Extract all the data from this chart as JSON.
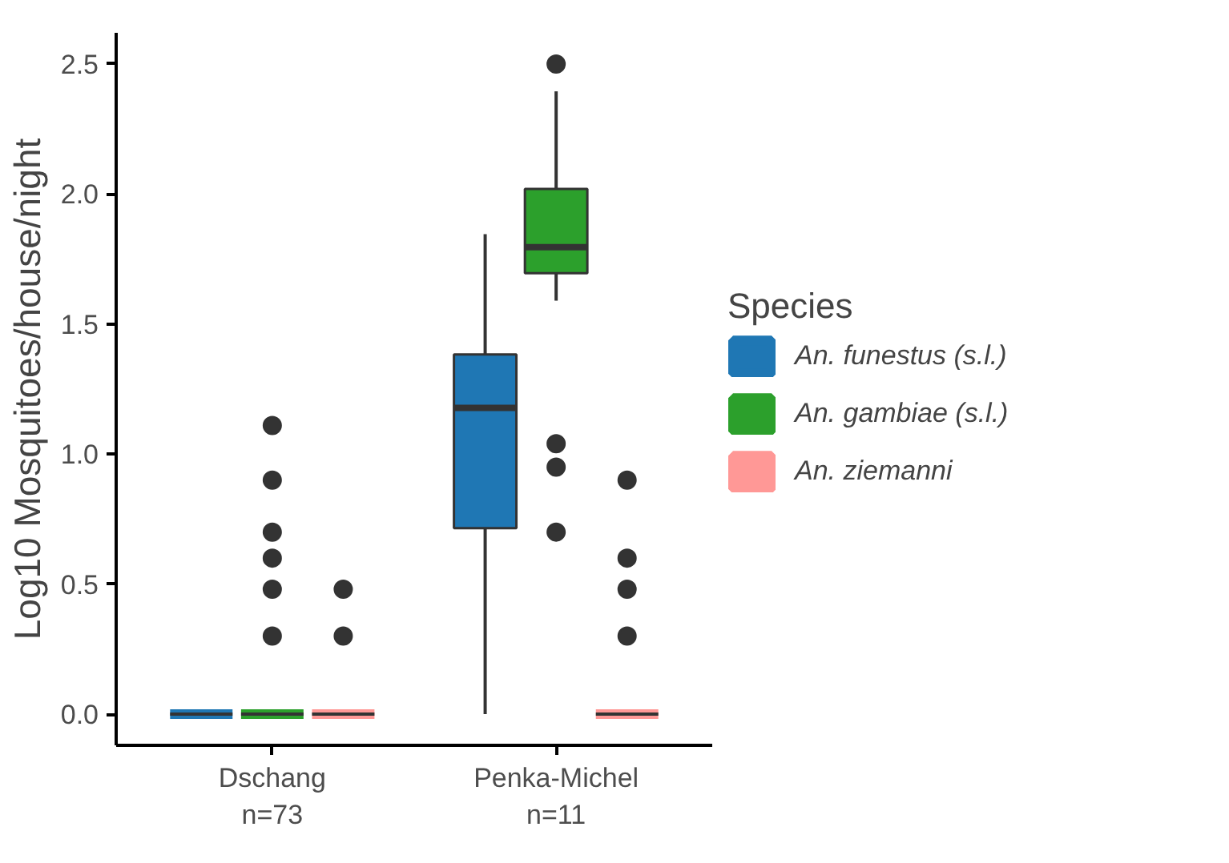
{
  "chart_data": {
    "type": "box",
    "ylabel": "Log10 Mosquitoes/house/night",
    "legend_title": "Species",
    "legend": "right",
    "grid": false,
    "categories": [
      "Dschang\nn=73",
      "Penka-Michel\nn=11"
    ],
    "ylim": [
      -0.12,
      2.62
    ],
    "yticks": [
      {
        "value": 0,
        "label": "0.0"
      },
      {
        "value": 0.5,
        "label": "0.5"
      },
      {
        "value": 1,
        "label": "1.0"
      },
      {
        "value": 1.5,
        "label": "1.5"
      },
      {
        "value": 2,
        "label": "2.0"
      },
      {
        "value": 2.5,
        "label": "2.5"
      }
    ],
    "series": [
      {
        "name": "An. funestus (s.l.)",
        "color": "#1f77b4",
        "boxes": [
          {
            "low": 0,
            "q1": 0,
            "median": 0,
            "q3": 0,
            "high": 0
          },
          {
            "low": 0,
            "q1": 0.715,
            "median": 1.178,
            "q3": 1.383,
            "high": 1.846
          }
        ]
      },
      {
        "name": "An. gambiae (s.l.)",
        "color": "#2ca02c",
        "boxes": [
          {
            "low": 0,
            "q1": 0,
            "median": 0,
            "q3": 0,
            "high": 0,
            "outliers": [
              1.11,
              0.9,
              0.7,
              0.6,
              0.48,
              0.3
            ]
          },
          {
            "low": 1.59,
            "q1": 1.696,
            "median": 1.796,
            "q3": 2.02,
            "high": 2.395,
            "outliers": [
              2.5,
              1.04,
              0.95,
              0.7
            ]
          }
        ]
      },
      {
        "name": "An. ziemanni",
        "color": "#ff9896",
        "boxes": [
          {
            "low": 0,
            "q1": 0,
            "median": 0,
            "q3": 0,
            "high": 0,
            "outliers": [
              0.48,
              0.3
            ]
          },
          {
            "low": 0,
            "q1": 0,
            "median": 0,
            "q3": 0,
            "high": 0,
            "outliers": [
              0.9,
              0.6,
              0.48,
              0.3
            ]
          }
        ]
      }
    ]
  }
}
